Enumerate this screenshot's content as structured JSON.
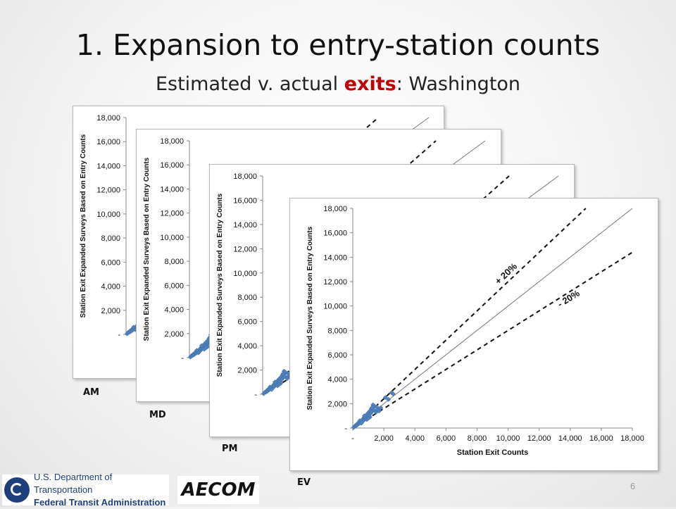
{
  "slide": {
    "title": "1. Expansion to entry-station counts",
    "subtitle_prefix": "Estimated v. actual ",
    "subtitle_highlight": "exits",
    "subtitle_suffix": ": Washington",
    "page_number": "6",
    "highlight_color": "#c00000"
  },
  "panel_labels": [
    "AM",
    "MD",
    "PM",
    "EV"
  ],
  "logos": {
    "dot_line1": "U.S. Department of Transportation",
    "dot_line2": "Federal Transit Administration",
    "aecom": "AECOM"
  },
  "chart_data": {
    "type": "scatter",
    "xlabel": "Station Exit Counts",
    "ylabel": "Station Exit Expanded Surveys Based on Entry Counts",
    "xlim": [
      0,
      18000
    ],
    "ylim": [
      0,
      18000
    ],
    "x_ticks": [
      "-",
      "2,000",
      "4,000",
      "6,000",
      "8,000",
      "10,000",
      "12,000",
      "14,000",
      "16,000",
      "18,000"
    ],
    "y_ticks": [
      "-",
      "2,000",
      "4,000",
      "6,000",
      "8,000",
      "10,000",
      "12,000",
      "14,000",
      "16,000",
      "18,000"
    ],
    "grid": false,
    "marker_color": "#4f81bd",
    "reference_lines": [
      {
        "label": "",
        "slope": 1.0,
        "style": "solid"
      },
      {
        "label": "+ 20%",
        "slope": 1.2,
        "style": "dashed"
      },
      {
        "label": "- 20%",
        "slope": 0.8,
        "style": "dashed"
      }
    ],
    "points": [
      [
        60,
        50
      ],
      [
        120,
        150
      ],
      [
        200,
        180
      ],
      [
        250,
        300
      ],
      [
        300,
        260
      ],
      [
        350,
        420
      ],
      [
        420,
        380
      ],
      [
        480,
        520
      ],
      [
        520,
        450
      ],
      [
        600,
        650
      ],
      [
        650,
        560
      ],
      [
        700,
        820
      ],
      [
        750,
        700
      ],
      [
        800,
        900
      ],
      [
        850,
        780
      ],
      [
        900,
        1100
      ],
      [
        950,
        950
      ],
      [
        1000,
        1250
      ],
      [
        1050,
        1000
      ],
      [
        1100,
        1400
      ],
      [
        1150,
        1200
      ],
      [
        1200,
        1600
      ],
      [
        1250,
        1350
      ],
      [
        1300,
        1900
      ],
      [
        1350,
        1500
      ],
      [
        1400,
        1800
      ],
      [
        1500,
        1300
      ],
      [
        1550,
        1700
      ],
      [
        1600,
        1500
      ],
      [
        1700,
        1400
      ],
      [
        1800,
        1650
      ],
      [
        2100,
        2500
      ],
      [
        2300,
        2350
      ],
      [
        2500,
        2900
      ],
      [
        2600,
        2800
      ],
      [
        450,
        600
      ],
      [
        550,
        400
      ],
      [
        900,
        700
      ],
      [
        1100,
        900
      ],
      [
        1250,
        1700
      ],
      [
        750,
        1000
      ],
      [
        1000,
        800
      ]
    ]
  }
}
